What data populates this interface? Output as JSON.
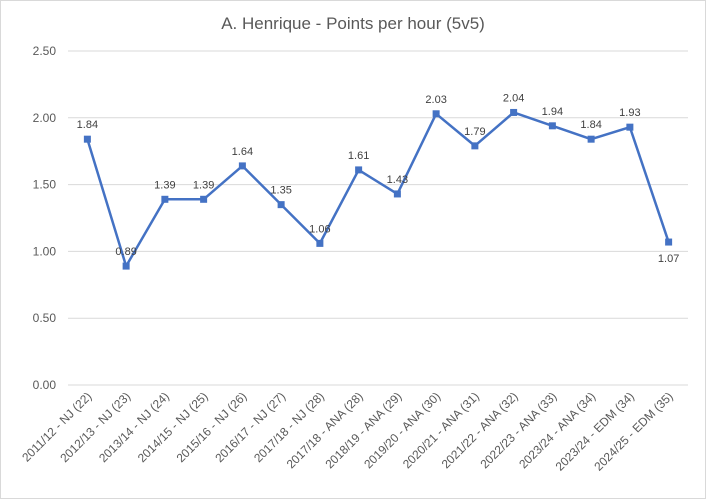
{
  "chart_data": {
    "type": "line",
    "title": "A. Henrique - Points per hour (5v5)",
    "xlabel": "",
    "ylabel": "",
    "ylim": [
      0,
      2.5
    ],
    "yticks": [
      "0.00",
      "0.50",
      "1.00",
      "1.50",
      "2.00",
      "2.50"
    ],
    "grid": true,
    "legend": "none",
    "categories": [
      "2011/12 - NJ (22)",
      "2012/13 - NJ (23)",
      "2013/14 - NJ (24)",
      "2014/15 - NJ (25)",
      "2015/16 - NJ (26)",
      "2016/17 - NJ (27)",
      "2017/18 - NJ (28)",
      "2017/18 - ANA (28)",
      "2018/19 - ANA (29)",
      "2019/20 - ANA (30)",
      "2020/21 - ANA (31)",
      "2021/22 - ANA (32)",
      "2022/23 - ANA (33)",
      "2023/24 - ANA (34)",
      "2023/24 - EDM (34)",
      "2024/25 - EDM (35)"
    ],
    "values": [
      1.84,
      0.89,
      1.39,
      1.39,
      1.64,
      1.35,
      1.06,
      1.61,
      1.43,
      2.03,
      1.79,
      2.04,
      1.94,
      1.84,
      1.93,
      1.07
    ],
    "value_labels": [
      "1.84",
      "0.89",
      "1.39",
      "1.39",
      "1.64",
      "1.35",
      "1.06",
      "1.61",
      "1.43",
      "2.03",
      "1.79",
      "2.04",
      "1.94",
      "1.84",
      "1.93",
      "1.07"
    ],
    "line_color": "#4472c4",
    "grid_color": "#d9d9d9"
  }
}
